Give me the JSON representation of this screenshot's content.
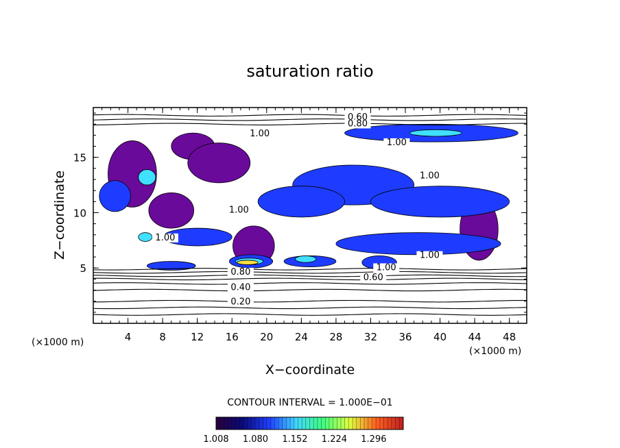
{
  "chart_data": {
    "type": "heatmap",
    "title": "saturation ratio",
    "xlabel": "X−coordinate",
    "ylabel": "Z−coordinate",
    "x_unit_left": "(×1000 m)",
    "x_unit_right": "(×1000 m)",
    "xlim": [
      0,
      50
    ],
    "ylim": [
      0,
      19.5
    ],
    "x_ticks": [
      4,
      8,
      12,
      16,
      20,
      24,
      28,
      32,
      36,
      40,
      44,
      48
    ],
    "y_ticks": [
      5,
      10,
      15
    ],
    "grid": false,
    "contour_interval_text": "CONTOUR INTERVAL = 1.000E−01",
    "colorbar": {
      "min": 1.008,
      "max": 1.35,
      "tick_labels": [
        "1.008",
        "1.080",
        "1.152",
        "1.224",
        "1.296"
      ],
      "colors": [
        "#2a003c",
        "#0a0a7a",
        "#2040ff",
        "#40d8ff",
        "#40ff80",
        "#e0ff40",
        "#ff6020",
        "#c02020"
      ]
    },
    "field_colors": {
      "background": "#ffffff",
      "low_supersat": "#6a0a9a",
      "mid_supersat": "#1e3cff",
      "high_supersat": "#40e0ff",
      "peak_supersat": "#ffe040"
    },
    "contour_labels": [
      {
        "text": "0.60",
        "x": 30.5,
        "y": 18.4
      },
      {
        "text": "0.80",
        "x": 30.5,
        "y": 17.8
      },
      {
        "text": "1.00",
        "x": 19.2,
        "y": 16.9
      },
      {
        "text": "1.00",
        "x": 35.0,
        "y": 16.1
      },
      {
        "text": "1.00",
        "x": 38.8,
        "y": 13.1
      },
      {
        "text": "1.00",
        "x": 16.8,
        "y": 10.0
      },
      {
        "text": "1.00",
        "x": 8.3,
        "y": 7.5
      },
      {
        "text": "1.00",
        "x": 38.8,
        "y": 5.9
      },
      {
        "text": "1.00",
        "x": 33.8,
        "y": 4.8
      },
      {
        "text": "0.80",
        "x": 17.0,
        "y": 4.4
      },
      {
        "text": "0.60",
        "x": 32.3,
        "y": 3.9
      },
      {
        "text": "0.40",
        "x": 17.0,
        "y": 3.0
      },
      {
        "text": "0.20",
        "x": 17.0,
        "y": 1.7
      }
    ],
    "horizontal_contours": [
      0.8,
      1.4,
      2.0,
      3.0,
      3.6,
      4.0,
      4.3,
      4.6,
      4.9,
      18.0,
      18.4,
      18.8
    ],
    "supersaturated_regions": [
      {
        "x": 4.5,
        "y": 13.5,
        "rx": 2.8,
        "ry": 3.0,
        "level": "low"
      },
      {
        "x": 11.5,
        "y": 16.0,
        "rx": 2.5,
        "ry": 1.2,
        "level": "low"
      },
      {
        "x": 9.0,
        "y": 10.2,
        "rx": 2.6,
        "ry": 1.6,
        "level": "low"
      },
      {
        "x": 14.5,
        "y": 14.5,
        "rx": 3.6,
        "ry": 1.8,
        "level": "low"
      },
      {
        "x": 18.5,
        "y": 7.0,
        "rx": 2.4,
        "ry": 1.8,
        "level": "low"
      },
      {
        "x": 44.5,
        "y": 8.5,
        "rx": 2.2,
        "ry": 2.8,
        "level": "low"
      },
      {
        "x": 2.5,
        "y": 11.5,
        "rx": 1.8,
        "ry": 1.4,
        "level": "mid"
      },
      {
        "x": 30.0,
        "y": 12.5,
        "rx": 7.0,
        "ry": 1.8,
        "level": "mid"
      },
      {
        "x": 40.0,
        "y": 11.0,
        "rx": 8.0,
        "ry": 1.4,
        "level": "mid"
      },
      {
        "x": 24.0,
        "y": 11.0,
        "rx": 5.0,
        "ry": 1.4,
        "level": "mid"
      },
      {
        "x": 39.0,
        "y": 17.2,
        "rx": 10.0,
        "ry": 0.8,
        "level": "mid"
      },
      {
        "x": 37.5,
        "y": 7.2,
        "rx": 9.5,
        "ry": 1.0,
        "level": "mid"
      },
      {
        "x": 12.0,
        "y": 7.8,
        "rx": 4.0,
        "ry": 0.8,
        "level": "mid"
      },
      {
        "x": 18.2,
        "y": 5.6,
        "rx": 2.5,
        "ry": 0.6,
        "level": "mid"
      },
      {
        "x": 25.0,
        "y": 5.6,
        "rx": 3.0,
        "ry": 0.5,
        "level": "mid"
      },
      {
        "x": 9.0,
        "y": 5.2,
        "rx": 2.8,
        "ry": 0.4,
        "level": "mid"
      },
      {
        "x": 33.0,
        "y": 5.5,
        "rx": 2.0,
        "ry": 0.6,
        "level": "mid"
      },
      {
        "x": 6.2,
        "y": 13.2,
        "rx": 1.0,
        "ry": 0.7,
        "level": "high"
      },
      {
        "x": 18.0,
        "y": 5.6,
        "rx": 1.6,
        "ry": 0.3,
        "level": "high"
      },
      {
        "x": 24.5,
        "y": 5.8,
        "rx": 1.2,
        "ry": 0.3,
        "level": "high"
      },
      {
        "x": 39.5,
        "y": 17.2,
        "rx": 3.0,
        "ry": 0.3,
        "level": "high"
      },
      {
        "x": 6.0,
        "y": 7.8,
        "rx": 0.8,
        "ry": 0.4,
        "level": "high"
      },
      {
        "x": 17.8,
        "y": 5.5,
        "rx": 1.2,
        "ry": 0.2,
        "level": "peak"
      }
    ]
  }
}
